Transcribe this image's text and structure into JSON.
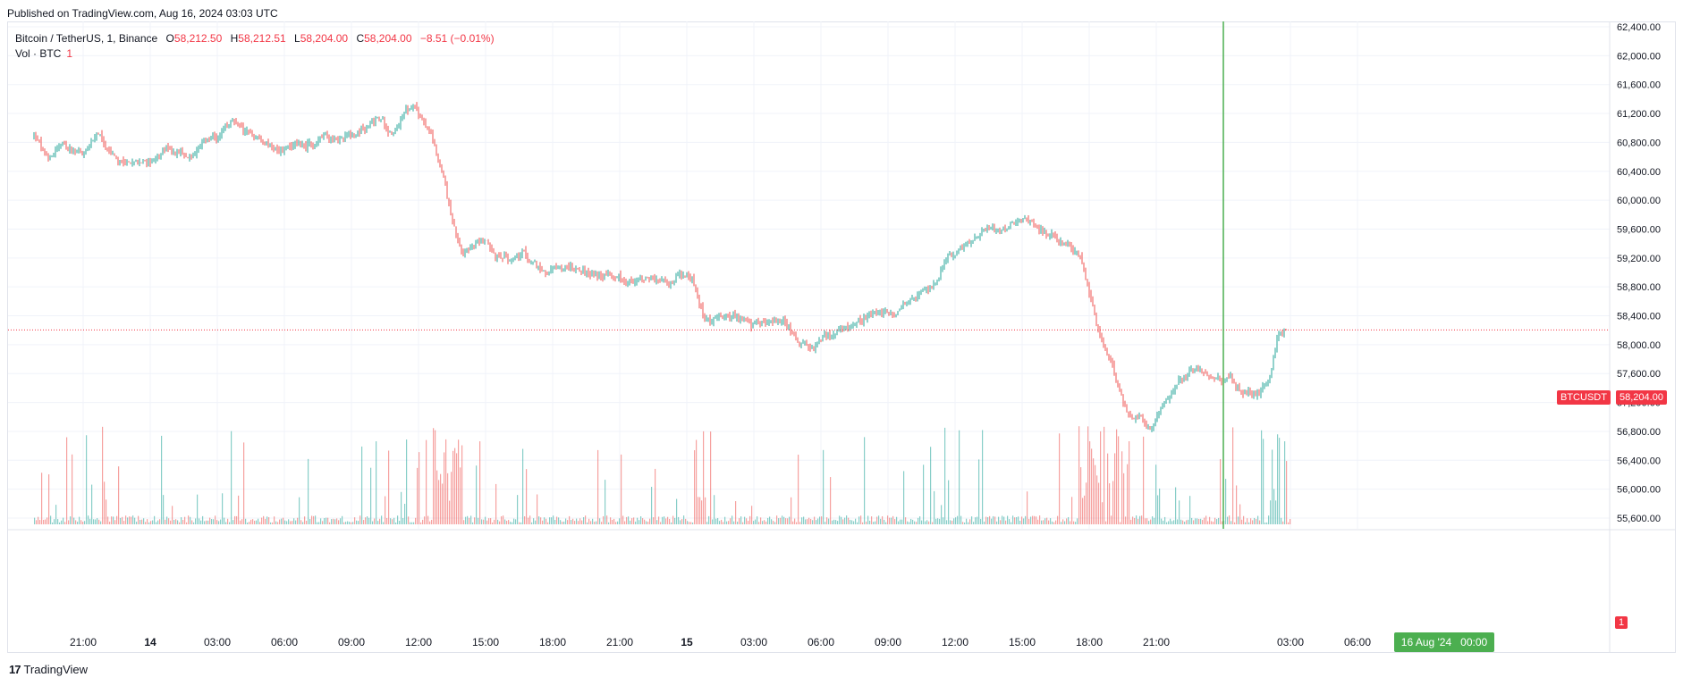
{
  "published": "Published on TradingView.com, Aug 16, 2024 03:03 UTC",
  "legend": {
    "symbol": "Bitcoin / TetherUS, 1, Binance",
    "open_label": "O",
    "open": "58,212.50",
    "high_label": "H",
    "high": "58,212.51",
    "low_label": "L",
    "low": "58,204.00",
    "close_label": "C",
    "close": "58,204.00",
    "change": "−8.51 (−0.01%)",
    "volume_label": "Vol · BTC",
    "volume_value": "1"
  },
  "badges": {
    "symbol": "BTCUSDT",
    "price": "58,204.00",
    "volume": "1",
    "crosshair_date": "16 Aug '24",
    "crosshair_time": "00:00"
  },
  "brand": "TradingView",
  "colors": {
    "up": "#26a69a",
    "down": "#ef5350",
    "crosshair": "#4caf50",
    "grid": "#f0f3fa",
    "text": "#131722"
  },
  "chart_data": {
    "type": "candlestick",
    "title": "Bitcoin / TetherUS, 1, Binance",
    "interval": "1 minute",
    "ylim": [
      55600,
      62400
    ],
    "y_ticks": [
      "62,400.00",
      "62,000.00",
      "61,600.00",
      "61,200.00",
      "60,800.00",
      "60,400.00",
      "60,000.00",
      "59,600.00",
      "59,200.00",
      "58,800.00",
      "58,400.00",
      "58,000.00",
      "57,600.00",
      "57,200.00",
      "56,800.00",
      "56,400.00",
      "56,000.00",
      "55,600.00"
    ],
    "y_tick_values": [
      62400,
      62000,
      61600,
      61200,
      60800,
      60400,
      60000,
      59600,
      59200,
      58800,
      58400,
      58000,
      57600,
      57200,
      56800,
      56400,
      56000,
      55600
    ],
    "x_ticks": [
      {
        "label": "21:00",
        "hours": -3
      },
      {
        "label": "14",
        "hours": 0
      },
      {
        "label": "03:00",
        "hours": 3
      },
      {
        "label": "06:00",
        "hours": 6
      },
      {
        "label": "09:00",
        "hours": 9
      },
      {
        "label": "12:00",
        "hours": 12
      },
      {
        "label": "15:00",
        "hours": 15
      },
      {
        "label": "18:00",
        "hours": 18
      },
      {
        "label": "21:00",
        "hours": 21
      },
      {
        "label": "15",
        "hours": 24
      },
      {
        "label": "03:00",
        "hours": 27
      },
      {
        "label": "06:00",
        "hours": 30
      },
      {
        "label": "09:00",
        "hours": 33
      },
      {
        "label": "12:00",
        "hours": 36
      },
      {
        "label": "15:00",
        "hours": 39
      },
      {
        "label": "18:00",
        "hours": 42
      },
      {
        "label": "21:00",
        "hours": 45
      },
      {
        "label": "03:00",
        "hours": 51
      },
      {
        "label": "06:00",
        "hours": 54
      }
    ],
    "crosshair_hours": 48,
    "last_price": 58204,
    "price_path_hours": [
      -5.2,
      -4.8,
      -4.6,
      -4.2,
      -3.6,
      -3.0,
      -2.4,
      -2.0,
      -1.4,
      -0.8,
      0.0,
      0.6,
      1.2,
      1.8,
      2.4,
      3.0,
      3.6,
      4.2,
      4.8,
      5.4,
      6.0,
      6.6,
      7.2,
      7.8,
      8.4,
      9.0,
      9.6,
      10.2,
      10.8,
      11.4,
      11.8,
      12.2,
      12.6,
      13.0,
      13.4,
      13.8,
      14.0,
      14.2,
      14.6,
      15.0,
      15.4,
      15.8,
      16.2,
      16.6,
      17.0,
      17.6,
      18.2,
      18.8,
      19.4,
      20.0,
      20.6,
      21.2,
      21.8,
      22.4,
      23.0,
      23.6,
      24.2,
      24.8,
      25.4,
      26.0,
      26.6,
      27.2,
      27.8,
      28.4,
      29.0,
      29.6,
      30.2,
      30.8,
      31.4,
      32.0,
      32.6,
      33.2,
      33.8,
      34.4,
      35.0,
      35.6,
      36.2,
      36.8,
      37.4,
      38.0,
      38.6,
      39.2,
      39.8,
      40.4,
      41.0,
      41.6,
      42.2,
      42.6,
      43.0,
      43.4,
      43.8,
      44.2,
      44.6,
      45.0,
      45.4,
      45.8,
      46.2,
      46.6,
      47.0,
      47.6,
      48.2,
      48.8,
      49.4,
      50.0,
      50.4,
      50.8,
      51.0
    ],
    "price_path_values": [
      60900,
      60650,
      60550,
      60750,
      60700,
      60650,
      60950,
      60650,
      60550,
      60500,
      60550,
      60700,
      60650,
      60600,
      60800,
      60850,
      61100,
      60950,
      60850,
      60750,
      60700,
      60800,
      60750,
      60900,
      60850,
      60900,
      61000,
      61150,
      60900,
      61250,
      61300,
      61100,
      60800,
      60400,
      59800,
      59300,
      59200,
      59300,
      59400,
      59450,
      59200,
      59250,
      59150,
      59300,
      59100,
      59000,
      59050,
      59100,
      59000,
      58950,
      58950,
      58900,
      58900,
      58950,
      58850,
      58950,
      58900,
      58300,
      58400,
      58400,
      58300,
      58250,
      58350,
      58300,
      58000,
      57950,
      58100,
      58200,
      58300,
      58400,
      58450,
      58400,
      58600,
      58700,
      58800,
      59200,
      59300,
      59500,
      59600,
      59600,
      59700,
      59750,
      59600,
      59500,
      59350,
      59200,
      58350,
      57950,
      57700,
      57250,
      56950,
      57050,
      56800,
      56950,
      57250,
      57450,
      57550,
      57700,
      57650,
      57500,
      57550,
      57350,
      57300,
      57500,
      58150,
      58200
    ]
  }
}
